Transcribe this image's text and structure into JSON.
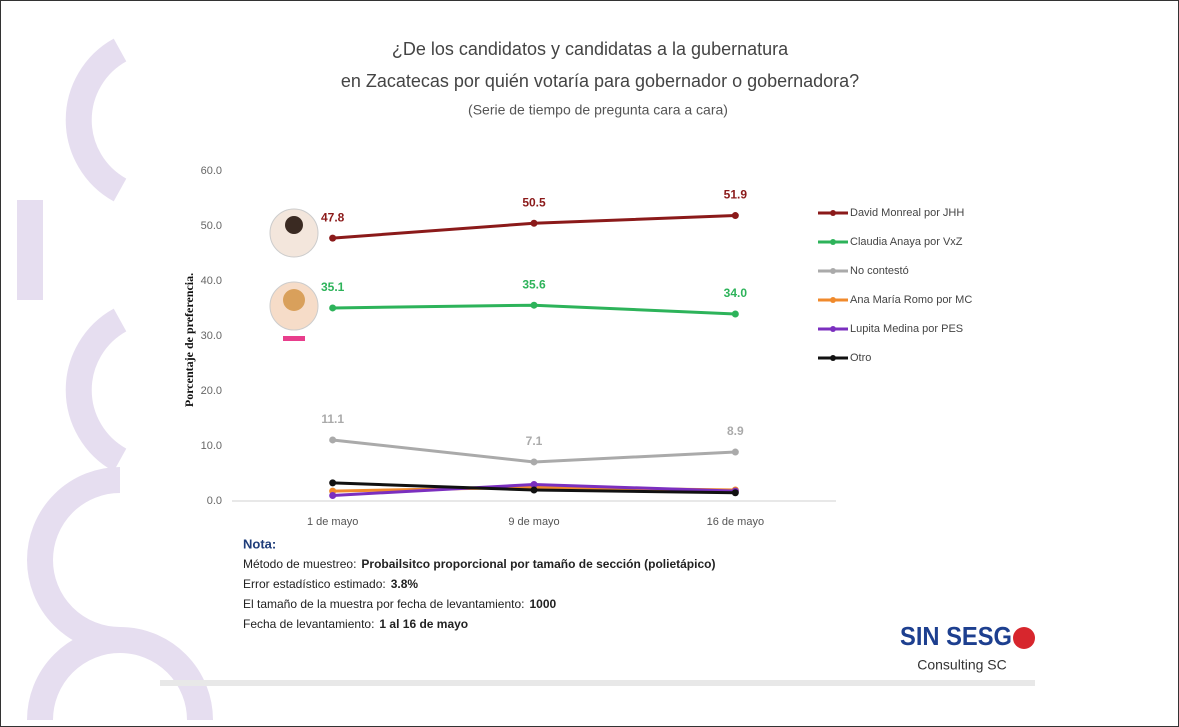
{
  "chart_data": {
    "type": "line",
    "title": [
      "¿De los candidatos y candidatas a la gubernatura",
      "en Zacatecas por quién votaría para gobernador o gobernadora?"
    ],
    "subtitle": "(Serie de tiempo de pregunta cara a cara)",
    "y_label": "Porcentaje de preferencia.",
    "categories": [
      "1 de mayo",
      "9 de mayo",
      "16 de mayo"
    ],
    "ylim": [
      0,
      60
    ],
    "yticks": [
      {
        "value": 0,
        "label": "0.0"
      },
      {
        "value": 10,
        "label": "10.0"
      },
      {
        "value": 20,
        "label": "20.0"
      },
      {
        "value": 30,
        "label": "30.0"
      },
      {
        "value": 40,
        "label": "40.0"
      },
      {
        "value": 50,
        "label": "50.0"
      },
      {
        "value": 60,
        "label": "60.0"
      }
    ],
    "legend": "right",
    "series": [
      {
        "name": "David Monreal por JHH",
        "color": "#8b1a1a",
        "values": [
          47.8,
          50.5,
          51.9
        ],
        "value_labels": [
          "47.8",
          "50.5",
          "51.9"
        ]
      },
      {
        "name": "Claudia Anaya por VxZ",
        "color": "#2db35a",
        "values": [
          35.1,
          35.6,
          34.0
        ],
        "value_labels": [
          "35.1",
          "35.6",
          "34.0"
        ]
      },
      {
        "name": "No contestó",
        "color": "#aaaaaa",
        "values": [
          11.1,
          7.1,
          8.9
        ],
        "value_labels": [
          "11.1",
          "7.1",
          "8.9"
        ]
      },
      {
        "name": "Ana María Romo por MC",
        "color": "#f08a2c",
        "values": [
          1.8,
          2.5,
          2.0
        ]
      },
      {
        "name": "Lupita Medina por PES",
        "color": "#7b2fbf",
        "values": [
          1.0,
          3.0,
          1.8
        ]
      },
      {
        "name": "Otro",
        "color": "#111111",
        "values": [
          3.3,
          2.0,
          1.5
        ]
      }
    ],
    "note": {
      "heading": "Nota:",
      "items": [
        {
          "label": "Método de muestreo:",
          "value": "Probailsitco proporcional por tamaño de sección (polietápico)"
        },
        {
          "label": "Error estadístico estimado:",
          "value": "3.8%"
        },
        {
          "label": "El tamaño de la muestra por fecha de levantamiento:",
          "value": "1000"
        },
        {
          "label": "Fecha de levantamiento:",
          "value": "1 al 16 de mayo"
        }
      ]
    },
    "logo": {
      "text": "SIN SESG",
      "subtext": "Consulting SC"
    }
  }
}
